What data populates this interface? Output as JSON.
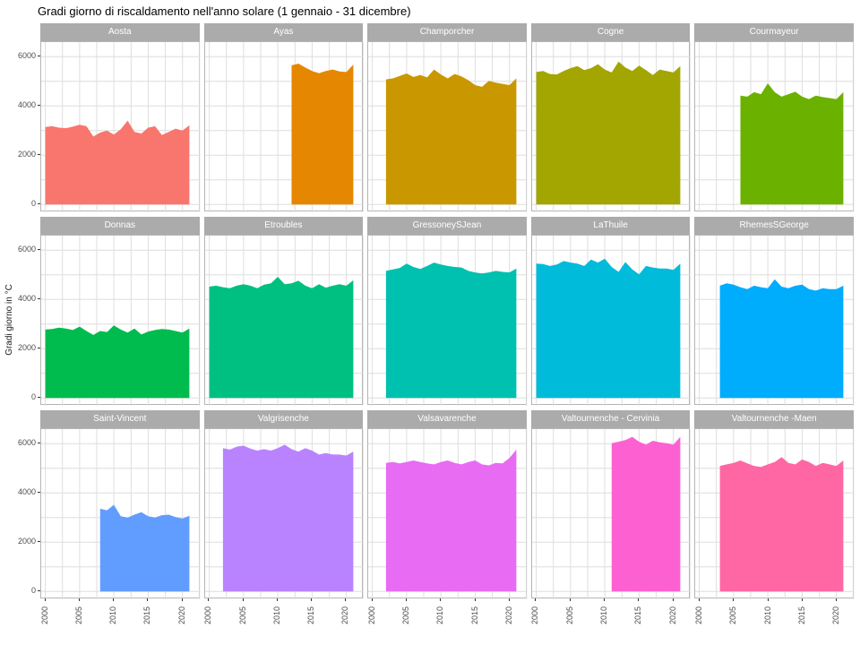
{
  "title": "Gradi giorno di riscaldamento nell'anno solare (1 gennaio - 31 dicembre)",
  "y_axis_label": "Gradi giorno in °C",
  "chart_data": {
    "type": "area",
    "title": "Gradi giorno di riscaldamento nell'anno solare (1 gennaio - 31 dicembre)",
    "xlabel": "",
    "ylabel": "Gradi giorno in °C",
    "grid": true,
    "legend": "none",
    "facet_layout": {
      "rows": 3,
      "cols": 5
    },
    "x_ticks": [
      2000,
      2005,
      2010,
      2015,
      2020
    ],
    "y_ticks": [
      0,
      2000,
      4000,
      6000
    ],
    "xlim": [
      1999.4,
      2022.6
    ],
    "ylim": [
      -315,
      6594
    ],
    "x_grid_step": 2.5,
    "y_grid_step": 1000,
    "end_year": 2021,
    "colors": {
      "strip_bg": "#ABABAB",
      "strip_text": "#FFFFFF",
      "panel_bg": "#FFFFFF",
      "panel_border": "#B5B5B5",
      "gridline": "#DEDEDE",
      "axis_text": "#4D4D4D",
      "tick_mark": "#333333"
    },
    "facets": [
      {
        "name": "Aosta",
        "color": "#F8766D",
        "start_year": 2000,
        "values": [
          3150,
          3180,
          3120,
          3100,
          3160,
          3240,
          3180,
          2760,
          2920,
          3000,
          2840,
          3060,
          3400,
          2950,
          2880,
          3120,
          3180,
          2820,
          2950,
          3080,
          3000,
          3220
        ]
      },
      {
        "name": "Ayas",
        "color": "#E58700",
        "start_year": 2012,
        "values": [
          5650,
          5720,
          5560,
          5420,
          5330,
          5420,
          5480,
          5400,
          5380,
          5680
        ]
      },
      {
        "name": "Champorcher",
        "color": "#C99800",
        "start_year": 2002,
        "values": [
          5080,
          5120,
          5220,
          5320,
          5180,
          5260,
          5160,
          5480,
          5280,
          5120,
          5300,
          5200,
          5050,
          4850,
          4780,
          5020,
          4950,
          4900,
          4850,
          5120
        ]
      },
      {
        "name": "Cogne",
        "color": "#A3A500",
        "start_year": 2000,
        "values": [
          5380,
          5420,
          5300,
          5280,
          5420,
          5540,
          5620,
          5460,
          5540,
          5700,
          5480,
          5360,
          5800,
          5560,
          5420,
          5640,
          5460,
          5260,
          5480,
          5420,
          5360,
          5620
        ]
      },
      {
        "name": "Courmayeur",
        "color": "#6BB100",
        "start_year": 2006,
        "values": [
          4420,
          4380,
          4560,
          4480,
          4920,
          4560,
          4380,
          4480,
          4580,
          4380,
          4280,
          4420,
          4360,
          4320,
          4280,
          4560
        ]
      },
      {
        "name": "Donnas",
        "color": "#00BB4E",
        "start_year": 2000,
        "values": [
          2780,
          2800,
          2860,
          2820,
          2760,
          2900,
          2720,
          2560,
          2720,
          2680,
          2950,
          2780,
          2660,
          2820,
          2580,
          2700,
          2760,
          2800,
          2780,
          2720,
          2660,
          2820
        ]
      },
      {
        "name": "Etroubles",
        "color": "#00C081",
        "start_year": 2000,
        "values": [
          4520,
          4560,
          4500,
          4460,
          4560,
          4620,
          4560,
          4460,
          4600,
          4660,
          4920,
          4620,
          4660,
          4760,
          4560,
          4460,
          4620,
          4480,
          4560,
          4620,
          4560,
          4780
        ]
      },
      {
        "name": "GressoneySJean",
        "color": "#00C0AF",
        "start_year": 2002,
        "values": [
          5160,
          5220,
          5280,
          5460,
          5320,
          5240,
          5360,
          5500,
          5420,
          5360,
          5320,
          5300,
          5160,
          5100,
          5060,
          5100,
          5160,
          5120,
          5100,
          5260
        ]
      },
      {
        "name": "LaThuile",
        "color": "#00BBD9",
        "start_year": 2000,
        "values": [
          5460,
          5440,
          5360,
          5420,
          5560,
          5500,
          5460,
          5360,
          5620,
          5500,
          5660,
          5320,
          5120,
          5520,
          5220,
          5020,
          5360,
          5300,
          5260,
          5260,
          5200,
          5460
        ]
      },
      {
        "name": "RhemesSGeorge",
        "color": "#00ACFC",
        "start_year": 2003,
        "values": [
          4560,
          4660,
          4600,
          4500,
          4420,
          4560,
          4500,
          4460,
          4820,
          4520,
          4460,
          4560,
          4600,
          4420,
          4360,
          4460,
          4420,
          4420,
          4560
        ]
      },
      {
        "name": "Saint-Vincent",
        "color": "#619CFF",
        "start_year": 2008,
        "values": [
          3360,
          3300,
          3520,
          3060,
          3000,
          3120,
          3220,
          3060,
          3000,
          3100,
          3120,
          3020,
          2960,
          3080
        ]
      },
      {
        "name": "Valgrisenche",
        "color": "#B983FF",
        "start_year": 2002,
        "values": [
          5820,
          5760,
          5880,
          5920,
          5800,
          5720,
          5780,
          5720,
          5820,
          5960,
          5780,
          5680,
          5820,
          5720,
          5560,
          5620,
          5560,
          5560,
          5520,
          5680
        ]
      },
      {
        "name": "Valsavarenche",
        "color": "#E76BF3",
        "start_year": 2002,
        "values": [
          5220,
          5260,
          5200,
          5260,
          5320,
          5260,
          5200,
          5160,
          5260,
          5320,
          5220,
          5160,
          5260,
          5320,
          5160,
          5120,
          5220,
          5200,
          5420,
          5760
        ]
      },
      {
        "name": "Valtournenche - Cervinia",
        "color": "#FD61D1",
        "start_year": 2011,
        "values": [
          6020,
          6080,
          6150,
          6280,
          6080,
          5960,
          6120,
          6060,
          6020,
          5960,
          6280
        ]
      },
      {
        "name": "Valtournenche -Maen",
        "color": "#FF67A4",
        "start_year": 2003,
        "values": [
          5100,
          5160,
          5220,
          5320,
          5200,
          5100,
          5060,
          5160,
          5260,
          5460,
          5220,
          5160,
          5360,
          5260,
          5100,
          5220,
          5160,
          5100,
          5320
        ]
      }
    ]
  }
}
